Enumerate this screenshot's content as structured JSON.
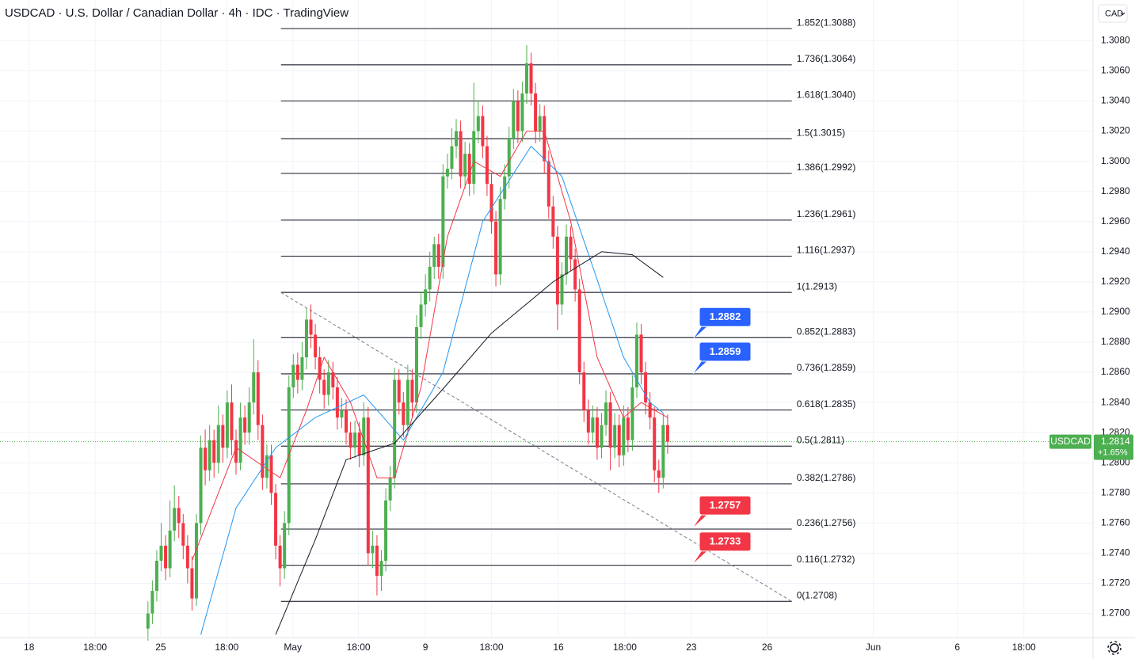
{
  "chart_data": {
    "type": "candlestick",
    "title": "USDCAD · U.S. Dollar / Canadian Dollar · 4h · IDC · TradingView",
    "currency": "CAD",
    "up_color": "#4caf50",
    "down_color": "#f23645",
    "ylim": [
      1.2684,
      1.3107
    ],
    "yticks": [
      {
        "value": 1.27,
        "label": "1.2700"
      },
      {
        "value": 1.272,
        "label": "1.2720"
      },
      {
        "value": 1.274,
        "label": "1.2740"
      },
      {
        "value": 1.276,
        "label": "1.2760"
      },
      {
        "value": 1.278,
        "label": "1.2780"
      },
      {
        "value": 1.28,
        "label": "1.2800"
      },
      {
        "value": 1.282,
        "label": "1.2820"
      },
      {
        "value": 1.284,
        "label": "1.2840"
      },
      {
        "value": 1.286,
        "label": "1.2860"
      },
      {
        "value": 1.288,
        "label": "1.2880"
      },
      {
        "value": 1.29,
        "label": "1.2900"
      },
      {
        "value": 1.292,
        "label": "1.2920"
      },
      {
        "value": 1.294,
        "label": "1.2940"
      },
      {
        "value": 1.296,
        "label": "1.2960"
      },
      {
        "value": 1.298,
        "label": "1.2980"
      },
      {
        "value": 1.3,
        "label": "1.3000"
      },
      {
        "value": 1.302,
        "label": "1.3020"
      },
      {
        "value": 1.304,
        "label": "1.3040"
      },
      {
        "value": 1.306,
        "label": "1.3060"
      },
      {
        "value": 1.308,
        "label": "1.3080"
      }
    ],
    "xlim": [
      -33.6,
      214.6
    ],
    "xticks": [
      {
        "value": -27,
        "label": "18"
      },
      {
        "value": -12,
        "label": "18:00"
      },
      {
        "value": 2.9,
        "label": "25"
      },
      {
        "value": 17.9,
        "label": "18:00"
      },
      {
        "value": 32.9,
        "label": "May"
      },
      {
        "value": 47.8,
        "label": "18:00"
      },
      {
        "value": 63,
        "label": "9"
      },
      {
        "value": 78,
        "label": "18:00"
      },
      {
        "value": 93.2,
        "label": "16"
      },
      {
        "value": 108.3,
        "label": "18:00"
      },
      {
        "value": 123.4,
        "label": "23"
      },
      {
        "value": 140.6,
        "label": "26"
      },
      {
        "value": 164.7,
        "label": "Jun"
      },
      {
        "value": 183.8,
        "label": "6"
      },
      {
        "value": 198.9,
        "label": "18:00"
      }
    ],
    "grid": true,
    "candles": [
      [
        1.269,
        1.2708,
        1.2682,
        1.27
      ],
      [
        1.27,
        1.2722,
        1.2693,
        1.2715
      ],
      [
        1.2715,
        1.2742,
        1.2708,
        1.2735
      ],
      [
        1.2735,
        1.276,
        1.2728,
        1.2745
      ],
      [
        1.2745,
        1.2752,
        1.2722,
        1.273
      ],
      [
        1.273,
        1.2775,
        1.2724,
        1.2755
      ],
      [
        1.2755,
        1.2785,
        1.2748,
        1.277
      ],
      [
        1.277,
        1.2778,
        1.275,
        1.276
      ],
      [
        1.276,
        1.2766,
        1.2736,
        1.2745
      ],
      [
        1.2745,
        1.2752,
        1.272,
        1.273
      ],
      [
        1.273,
        1.2738,
        1.2702,
        1.271
      ],
      [
        1.271,
        1.2766,
        1.2705,
        1.276
      ],
      [
        1.276,
        1.2818,
        1.2752,
        1.281
      ],
      [
        1.281,
        1.2822,
        1.2785,
        1.2795
      ],
      [
        1.2795,
        1.2825,
        1.2788,
        1.2815
      ],
      [
        1.2815,
        1.2822,
        1.279,
        1.28
      ],
      [
        1.28,
        1.2838,
        1.2793,
        1.2825
      ],
      [
        1.2825,
        1.2832,
        1.28,
        1.281
      ],
      [
        1.281,
        1.2848,
        1.2803,
        1.284
      ],
      [
        1.284,
        1.2852,
        1.2805,
        1.2815
      ],
      [
        1.2815,
        1.2822,
        1.2792,
        1.28
      ],
      [
        1.28,
        1.284,
        1.2795,
        1.283
      ],
      [
        1.283,
        1.2838,
        1.2812,
        1.282
      ],
      [
        1.282,
        1.285,
        1.2812,
        1.284
      ],
      [
        1.284,
        1.2882,
        1.2832,
        1.286
      ],
      [
        1.286,
        1.2868,
        1.2815,
        1.2825
      ],
      [
        1.2825,
        1.2832,
        1.2782,
        1.279
      ],
      [
        1.279,
        1.2812,
        1.2783,
        1.2805
      ],
      [
        1.2805,
        1.2812,
        1.2772,
        1.278
      ],
      [
        1.278,
        1.2786,
        1.2736,
        1.2745
      ],
      [
        1.2745,
        1.2752,
        1.2718,
        1.273
      ],
      [
        1.273,
        1.2768,
        1.2723,
        1.276
      ],
      [
        1.276,
        1.2858,
        1.2752,
        1.285
      ],
      [
        1.285,
        1.2872,
        1.2843,
        1.2865
      ],
      [
        1.2865,
        1.2873,
        1.2846,
        1.2855
      ],
      [
        1.2855,
        1.288,
        1.2848,
        1.287
      ],
      [
        1.287,
        1.2903,
        1.2862,
        1.2895
      ],
      [
        1.2895,
        1.2905,
        1.2876,
        1.2885
      ],
      [
        1.2885,
        1.2892,
        1.2862,
        1.287
      ],
      [
        1.287,
        1.2877,
        1.2846,
        1.2855
      ],
      [
        1.2855,
        1.2862,
        1.2836,
        1.2845
      ],
      [
        1.2845,
        1.2868,
        1.2838,
        1.286
      ],
      [
        1.286,
        1.2867,
        1.2842,
        1.285
      ],
      [
        1.285,
        1.2857,
        1.2822,
        1.283
      ],
      [
        1.283,
        1.2843,
        1.2823,
        1.2835
      ],
      [
        1.2835,
        1.2842,
        1.2812,
        1.282
      ],
      [
        1.282,
        1.2827,
        1.2802,
        1.281
      ],
      [
        1.281,
        1.2828,
        1.2803,
        1.282
      ],
      [
        1.282,
        1.2827,
        1.2797,
        1.2805
      ],
      [
        1.2805,
        1.284,
        1.2798,
        1.283
      ],
      [
        1.283,
        1.2837,
        1.2732,
        1.274
      ],
      [
        1.274,
        1.2755,
        1.273,
        1.2745
      ],
      [
        1.2745,
        1.2752,
        1.2712,
        1.2725
      ],
      [
        1.2725,
        1.2742,
        1.2715,
        1.2735
      ],
      [
        1.2735,
        1.2783,
        1.2728,
        1.2775
      ],
      [
        1.2775,
        1.2798,
        1.2768,
        1.279
      ],
      [
        1.279,
        1.2863,
        1.2783,
        1.2855
      ],
      [
        1.2855,
        1.2862,
        1.2832,
        1.284
      ],
      [
        1.284,
        1.2847,
        1.2817,
        1.2825
      ],
      [
        1.2825,
        1.2865,
        1.2818,
        1.2855
      ],
      [
        1.2855,
        1.2862,
        1.283,
        1.284
      ],
      [
        1.284,
        1.2898,
        1.2833,
        1.289
      ],
      [
        1.289,
        1.2913,
        1.2882,
        1.2905
      ],
      [
        1.2905,
        1.2925,
        1.2897,
        1.2915
      ],
      [
        1.2915,
        1.294,
        1.2907,
        1.293
      ],
      [
        1.293,
        1.295,
        1.2922,
        1.2945
      ],
      [
        1.2945,
        1.2952,
        1.2922,
        1.293
      ],
      [
        1.293,
        1.2998,
        1.2922,
        1.299
      ],
      [
        1.299,
        1.3005,
        1.2982,
        1.2995
      ],
      [
        1.2995,
        1.3022,
        1.2988,
        1.301
      ],
      [
        1.301,
        1.3028,
        1.3002,
        1.302
      ],
      [
        1.302,
        1.3027,
        1.2982,
        1.299
      ],
      [
        1.299,
        1.3013,
        1.2982,
        1.3005
      ],
      [
        1.3005,
        1.3012,
        1.2977,
        1.2985
      ],
      [
        1.2985,
        1.3052,
        1.2978,
        1.302
      ],
      [
        1.302,
        1.304,
        1.3012,
        1.303
      ],
      [
        1.303,
        1.3037,
        1.3002,
        1.301
      ],
      [
        1.301,
        1.3017,
        1.2977,
        1.2985
      ],
      [
        1.2985,
        1.2992,
        1.2952,
        1.296
      ],
      [
        1.296,
        1.2967,
        1.2917,
        1.2925
      ],
      [
        1.2925,
        1.2983,
        1.2918,
        1.2975
      ],
      [
        1.2975,
        1.2998,
        1.2968,
        1.299
      ],
      [
        1.299,
        1.3023,
        1.2982,
        1.3015
      ],
      [
        1.3015,
        1.3048,
        1.3008,
        1.304
      ],
      [
        1.304,
        1.3047,
        1.3012,
        1.302
      ],
      [
        1.302,
        1.3053,
        1.3013,
        1.3045
      ],
      [
        1.3045,
        1.3077,
        1.3038,
        1.3065
      ],
      [
        1.3065,
        1.3072,
        1.3037,
        1.3045
      ],
      [
        1.3045,
        1.3052,
        1.3012,
        1.302
      ],
      [
        1.302,
        1.3038,
        1.3013,
        1.303
      ],
      [
        1.303,
        1.3037,
        1.2992,
        1.3
      ],
      [
        1.3,
        1.3007,
        1.2962,
        1.297
      ],
      [
        1.297,
        1.2977,
        1.2942,
        1.295
      ],
      [
        1.295,
        1.2957,
        1.2888,
        1.2905
      ],
      [
        1.2905,
        1.2933,
        1.2898,
        1.2925
      ],
      [
        1.2925,
        1.2958,
        1.2918,
        1.295
      ],
      [
        1.295,
        1.2957,
        1.2927,
        1.2935
      ],
      [
        1.2935,
        1.2942,
        1.2907,
        1.2915
      ],
      [
        1.2915,
        1.2922,
        1.2852,
        1.286
      ],
      [
        1.286,
        1.2867,
        1.2827,
        1.2835
      ],
      [
        1.2835,
        1.2842,
        1.2812,
        1.282
      ],
      [
        1.282,
        1.2838,
        1.2813,
        1.283
      ],
      [
        1.283,
        1.2837,
        1.2802,
        1.281
      ],
      [
        1.281,
        1.2833,
        1.2803,
        1.2825
      ],
      [
        1.2825,
        1.2848,
        1.2818,
        1.284
      ],
      [
        1.284,
        1.2847,
        1.2795,
        1.281
      ],
      [
        1.281,
        1.2833,
        1.2803,
        1.2825
      ],
      [
        1.2825,
        1.2832,
        1.2797,
        1.2805
      ],
      [
        1.2805,
        1.2838,
        1.2798,
        1.283
      ],
      [
        1.283,
        1.2837,
        1.2807,
        1.2815
      ],
      [
        1.2815,
        1.2858,
        1.2808,
        1.285
      ],
      [
        1.285,
        1.2893,
        1.2843,
        1.2885
      ],
      [
        1.2885,
        1.2892,
        1.2852,
        1.286
      ],
      [
        1.286,
        1.2867,
        1.2832,
        1.284
      ],
      [
        1.284,
        1.2847,
        1.2822,
        1.283
      ],
      [
        1.283,
        1.2837,
        1.2787,
        1.2795
      ],
      [
        1.2795,
        1.2802,
        1.278,
        1.279
      ],
      [
        1.279,
        1.2833,
        1.2783,
        1.2825
      ],
      [
        1.2825,
        1.2832,
        1.2806,
        1.2814
      ]
    ],
    "indicators": [
      {
        "color": "#f23645",
        "x": [
          10,
          20,
          30,
          36,
          40,
          46,
          52,
          56,
          62,
          68,
          74,
          80,
          86,
          90,
          96,
          102,
          108,
          112,
          118
        ],
        "values": [
          1.2735,
          1.281,
          1.279,
          1.2835,
          1.287,
          1.284,
          1.279,
          1.279,
          1.285,
          1.295,
          1.3,
          1.299,
          1.302,
          1.302,
          1.296,
          1.287,
          1.283,
          1.284,
          1.283
        ]
      },
      {
        "color": "#2196f3",
        "x": [
          12,
          20,
          29,
          38,
          49,
          58,
          67,
          76,
          87,
          94,
          101,
          108,
          114,
          117
        ],
        "values": [
          1.2686,
          1.277,
          1.281,
          1.283,
          1.2845,
          1.2815,
          1.286,
          1.296,
          1.301,
          1.299,
          1.293,
          1.287,
          1.284,
          1.2833
        ]
      },
      {
        "color": "#131722",
        "x": [
          29,
          38,
          45,
          56,
          67,
          78,
          92,
          103,
          110,
          117
        ],
        "values": [
          1.2686,
          1.2749,
          1.2802,
          1.2813,
          1.2849,
          1.2886,
          1.292,
          1.294,
          1.2938,
          1.2923
        ]
      }
    ],
    "fib": {
      "x": [
        30.2,
        146.2
      ],
      "levels": [
        {
          "label": "1.852(1.3088)",
          "value": 1.3088
        },
        {
          "label": "1.736(1.3064)",
          "value": 1.3064
        },
        {
          "label": "1.618(1.3040)",
          "value": 1.304
        },
        {
          "label": "1.5(1.3015)",
          "value": 1.3015
        },
        {
          "label": "1.386(1.2992)",
          "value": 1.2992
        },
        {
          "label": "1.236(1.2961)",
          "value": 1.2961
        },
        {
          "label": "1.116(1.2937)",
          "value": 1.2937
        },
        {
          "label": "1(1.2913)",
          "value": 1.2913
        },
        {
          "label": "0.852(1.2883)",
          "value": 1.2883
        },
        {
          "label": "0.736(1.2859)",
          "value": 1.2859
        },
        {
          "label": "0.618(1.2835)",
          "value": 1.2835
        },
        {
          "label": "0.5(1.2811)",
          "value": 1.2811
        },
        {
          "label": "0.382(1.2786)",
          "value": 1.2786
        },
        {
          "label": "0.236(1.2756)",
          "value": 1.2756
        },
        {
          "label": "0.116(1.2732)",
          "value": 1.2732
        },
        {
          "label": "0(1.2708)",
          "value": 1.2708
        }
      ]
    },
    "trendline": {
      "x": [
        30.2,
        146.2
      ],
      "values": [
        1.2913,
        1.2708
      ]
    },
    "callouts": [
      {
        "value": 1.2882,
        "color": "#2962ff"
      },
      {
        "value": 1.2859,
        "color": "#2962ff"
      },
      {
        "value": 1.2757,
        "color": "#f23645"
      },
      {
        "value": 1.2733,
        "color": "#f23645"
      }
    ],
    "last": {
      "symbol": "USDCAD",
      "price": 1.2814,
      "change": {
        "value": 1.65,
        "label": "+1.65%"
      },
      "color": "#4caf50"
    }
  }
}
